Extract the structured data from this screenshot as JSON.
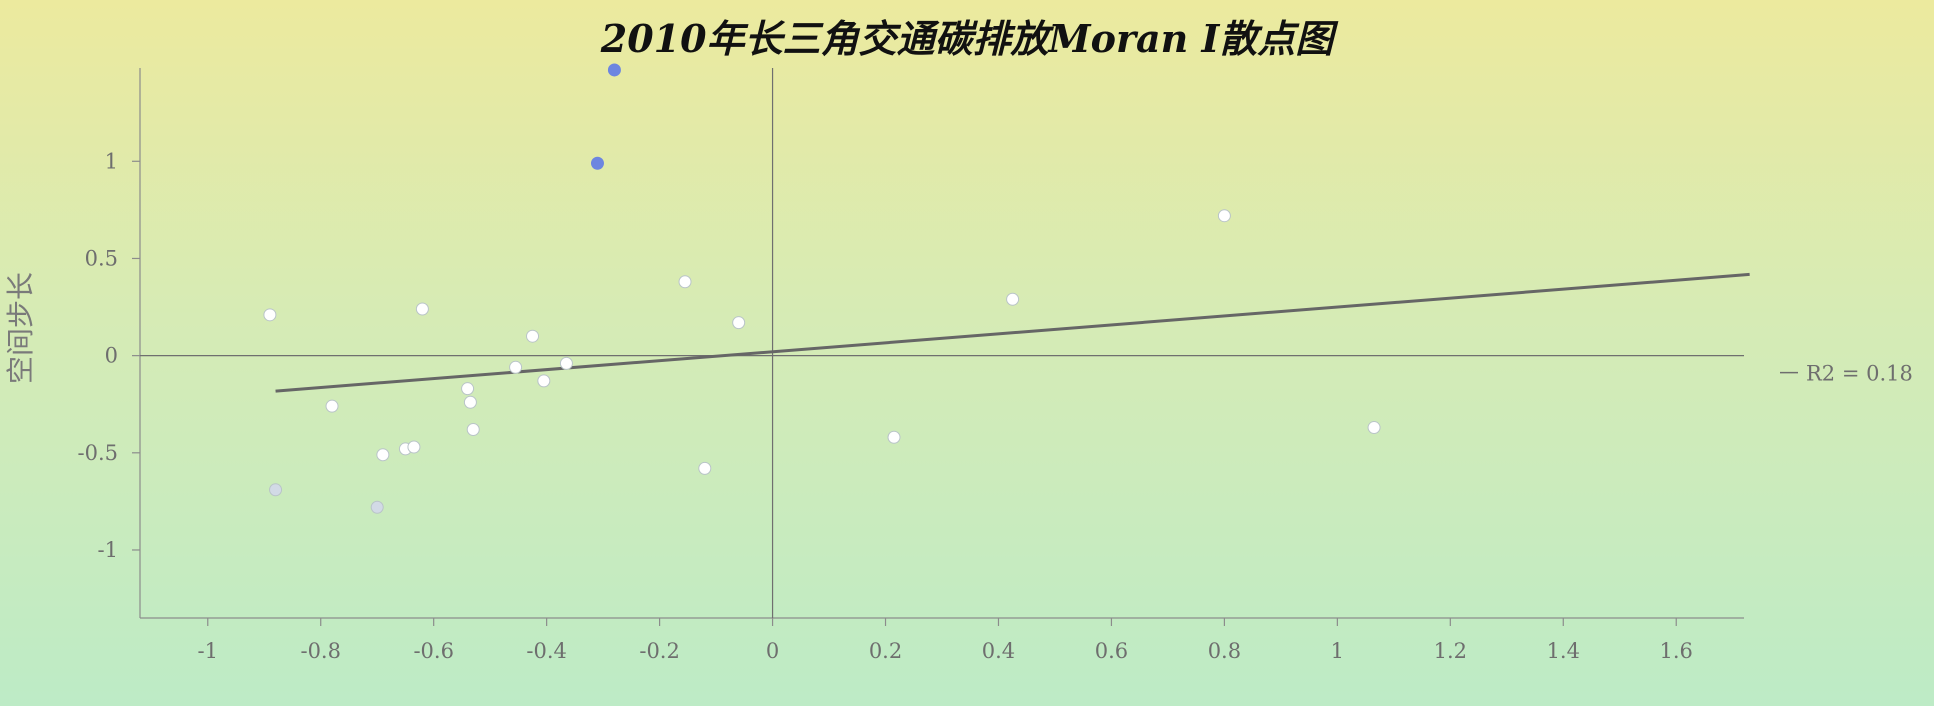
{
  "chart_data": {
    "type": "scatter",
    "title": "2010年长三角交通碳排放Moran I散点图",
    "xlabel": "",
    "ylabel": "空间步长",
    "xlim": [
      -1.12,
      1.72
    ],
    "ylim": [
      -1.35,
      1.48
    ],
    "xticks": [
      -1,
      -0.8,
      -0.6,
      -0.4,
      -0.2,
      0,
      0.2,
      0.4,
      0.6,
      0.8,
      1,
      1.2,
      1.4,
      1.6
    ],
    "xtick_labels": [
      "-1",
      "-0.8",
      "-0.6",
      "-0.4",
      "-0.2",
      "0",
      "0.2",
      "0.4",
      "0.6",
      "0.8",
      "1",
      "1.2",
      "1.4",
      "1.6"
    ],
    "yticks": [
      1,
      0.5,
      0,
      -0.5,
      -1
    ],
    "ytick_labels": [
      "1",
      "0.5",
      "0",
      "-0.5",
      "-1"
    ],
    "grid": false,
    "legend_position": "right",
    "fit_line": {
      "label": "R2 = 0.18",
      "x_range": [
        -0.88,
        1.73
      ],
      "slope": 0.23,
      "intercept": 0.02,
      "color": "#666666"
    },
    "points": [
      {
        "x": -0.28,
        "y": 1.47,
        "color": "#6d86e0"
      },
      {
        "x": -0.31,
        "y": 0.99,
        "color": "#6d86e0"
      },
      {
        "x": -0.89,
        "y": 0.21,
        "color": "#ffffff"
      },
      {
        "x": -0.88,
        "y": -0.69,
        "color": "#d2dae6"
      },
      {
        "x": -0.78,
        "y": -0.26,
        "color": "#ffffff"
      },
      {
        "x": -0.7,
        "y": -0.78,
        "color": "#d2dae6"
      },
      {
        "x": -0.69,
        "y": -0.51,
        "color": "#ffffff"
      },
      {
        "x": -0.65,
        "y": -0.48,
        "color": "#ffffff"
      },
      {
        "x": -0.635,
        "y": -0.47,
        "color": "#ffffff"
      },
      {
        "x": -0.62,
        "y": 0.24,
        "color": "#ffffff"
      },
      {
        "x": -0.54,
        "y": -0.17,
        "color": "#ffffff"
      },
      {
        "x": -0.535,
        "y": -0.24,
        "color": "#ffffff"
      },
      {
        "x": -0.53,
        "y": -0.38,
        "color": "#ffffff"
      },
      {
        "x": -0.455,
        "y": -0.06,
        "color": "#ffffff"
      },
      {
        "x": -0.425,
        "y": 0.1,
        "color": "#ffffff"
      },
      {
        "x": -0.405,
        "y": -0.13,
        "color": "#ffffff"
      },
      {
        "x": -0.365,
        "y": -0.04,
        "color": "#ffffff"
      },
      {
        "x": -0.155,
        "y": 0.38,
        "color": "#ffffff"
      },
      {
        "x": -0.12,
        "y": -0.58,
        "color": "#ffffff"
      },
      {
        "x": -0.06,
        "y": 0.17,
        "color": "#ffffff"
      },
      {
        "x": 0.215,
        "y": -0.42,
        "color": "#ffffff"
      },
      {
        "x": 0.425,
        "y": 0.29,
        "color": "#ffffff"
      },
      {
        "x": 0.8,
        "y": 0.72,
        "color": "#ffffff"
      },
      {
        "x": 1.065,
        "y": -0.37,
        "color": "#ffffff"
      }
    ]
  }
}
